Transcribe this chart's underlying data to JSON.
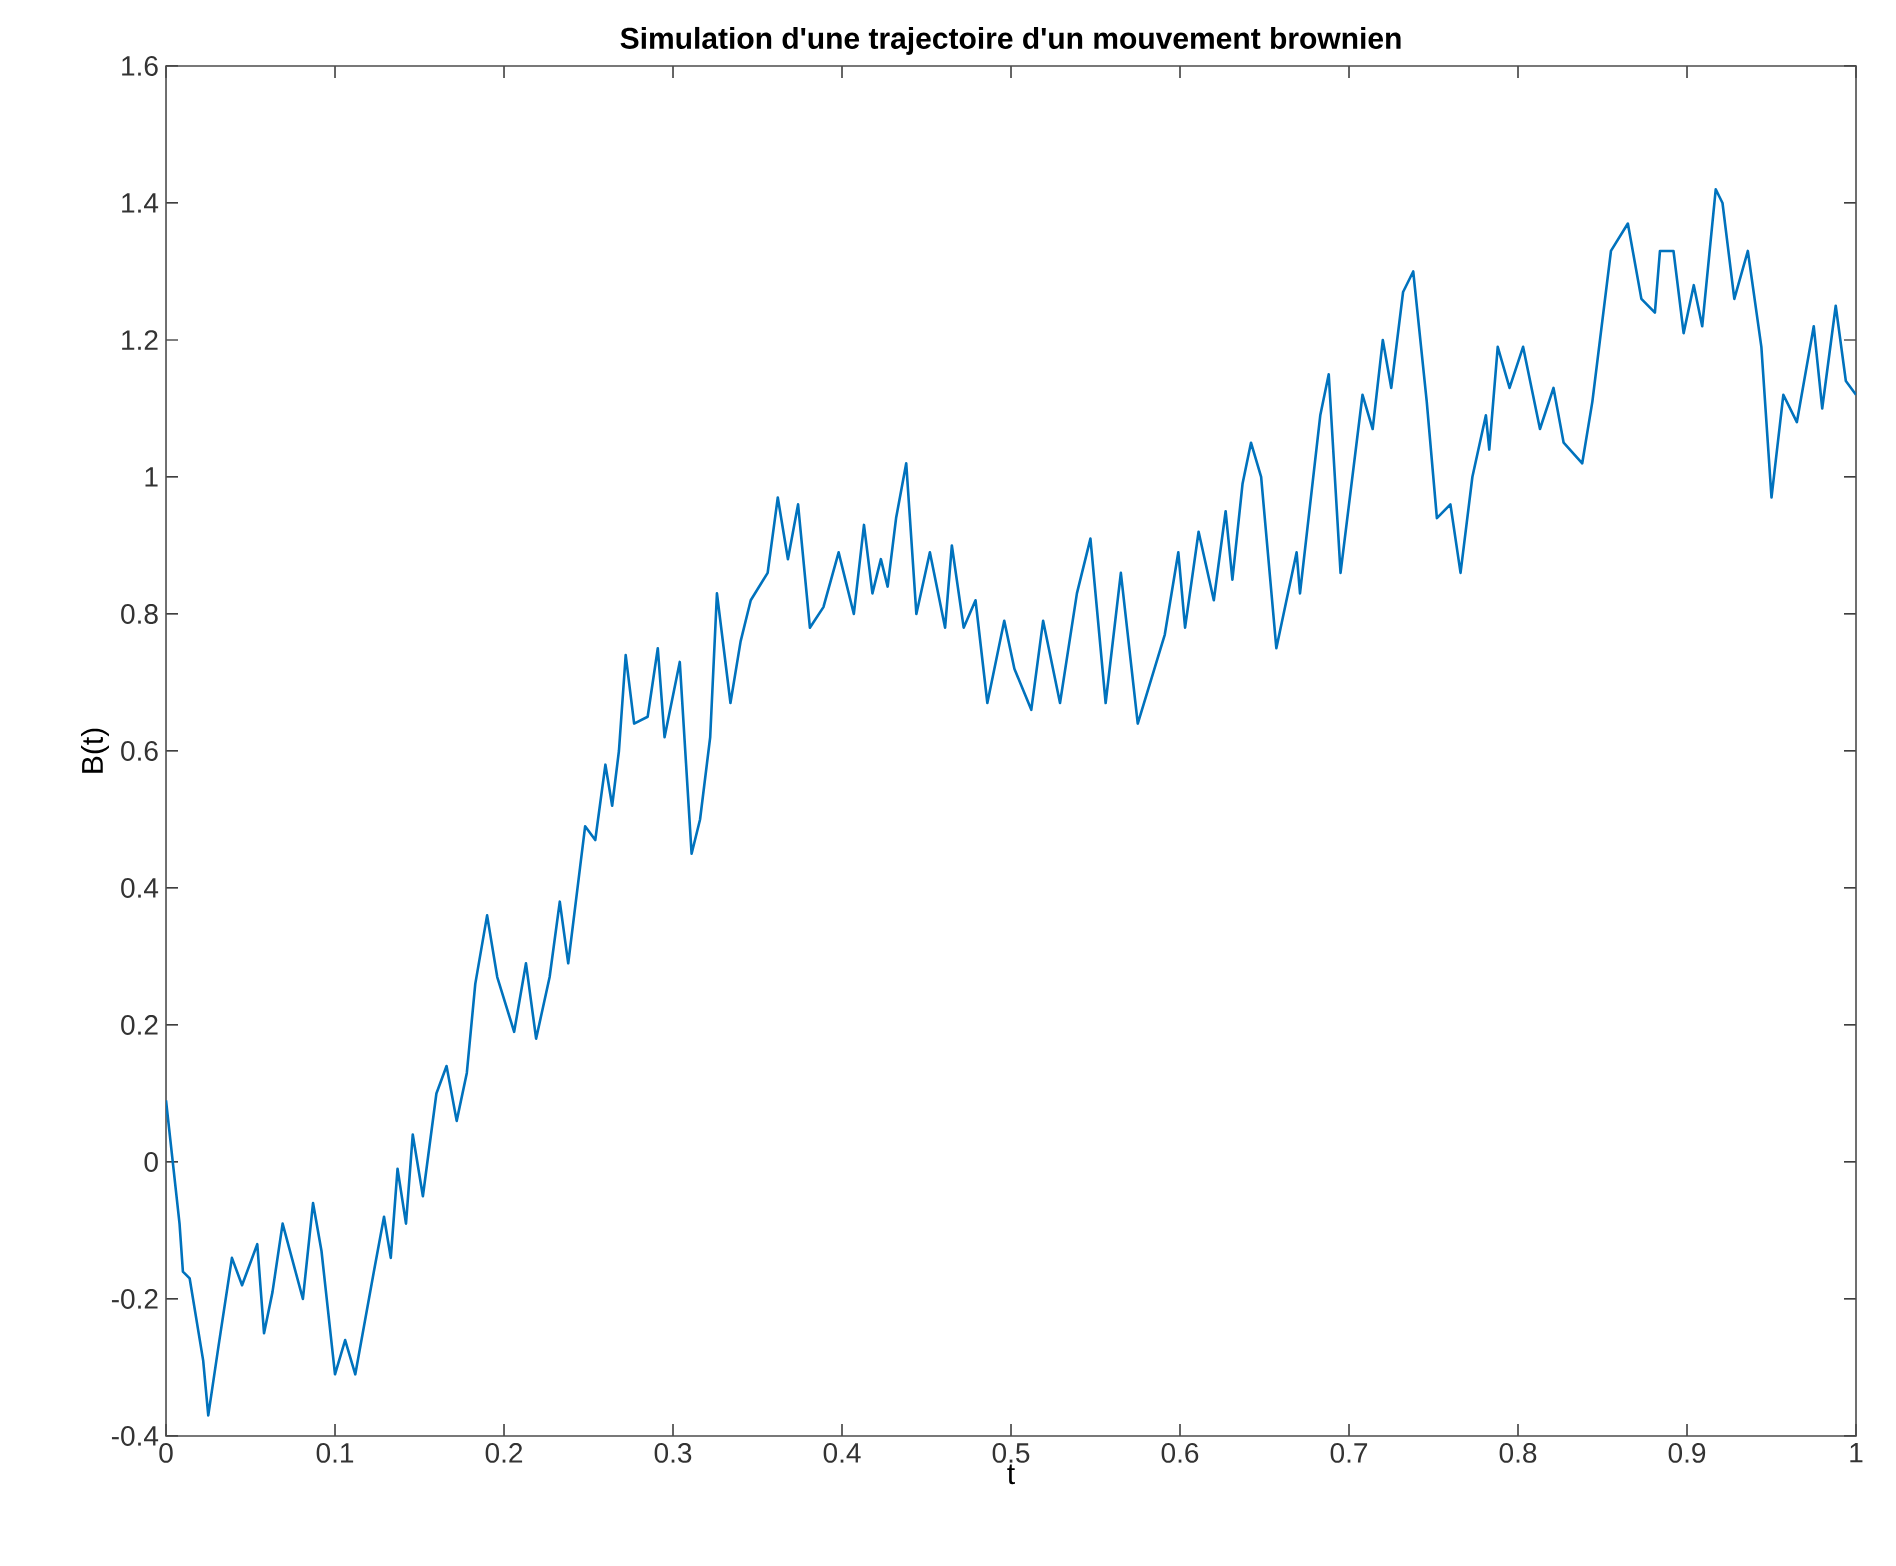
{
  "chart_data": {
    "type": "line",
    "title": "Simulation d'une trajectoire d'un mouvement brownien",
    "xlabel": "t",
    "ylabel": "B(t)",
    "xlim": [
      0,
      1
    ],
    "ylim": [
      -0.4,
      1.6
    ],
    "xticks": [
      0,
      0.1,
      0.2,
      0.3,
      0.4,
      0.5,
      0.6,
      0.7,
      0.8,
      0.9,
      1
    ],
    "yticks": [
      -0.4,
      -0.2,
      0,
      0.2,
      0.4,
      0.6,
      0.8,
      1,
      1.2,
      1.4,
      1.6
    ],
    "grid": false,
    "series": [
      {
        "color": "#0072bd",
        "x": [
          0,
          0.008,
          0.01,
          0.014,
          0.022,
          0.025,
          0.031,
          0.039,
          0.045,
          0.054,
          0.058,
          0.063,
          0.069,
          0.081,
          0.087,
          0.092,
          0.1,
          0.106,
          0.112,
          0.123,
          0.129,
          0.133,
          0.137,
          0.142,
          0.146,
          0.152,
          0.16,
          0.166,
          0.172,
          0.178,
          0.183,
          0.19,
          0.196,
          0.206,
          0.213,
          0.219,
          0.227,
          0.233,
          0.238,
          0.245,
          0.248,
          0.254,
          0.26,
          0.264,
          0.268,
          0.272,
          0.277,
          0.285,
          0.291,
          0.295,
          0.304,
          0.311,
          0.316,
          0.322,
          0.326,
          0.334,
          0.34,
          0.346,
          0.356,
          0.362,
          0.368,
          0.374,
          0.381,
          0.389,
          0.398,
          0.407,
          0.413,
          0.418,
          0.423,
          0.427,
          0.432,
          0.438,
          0.444,
          0.452,
          0.461,
          0.465,
          0.472,
          0.479,
          0.486,
          0.496,
          0.502,
          0.512,
          0.519,
          0.529,
          0.539,
          0.547,
          0.556,
          0.565,
          0.575,
          0.591,
          0.599,
          0.603,
          0.611,
          0.62,
          0.627,
          0.631,
          0.637,
          0.642,
          0.648,
          0.657,
          0.669,
          0.671,
          0.683,
          0.688,
          0.695,
          0.708,
          0.714,
          0.72,
          0.725,
          0.732,
          0.738,
          0.746,
          0.752,
          0.76,
          0.766,
          0.773,
          0.781,
          0.783,
          0.788,
          0.795,
          0.803,
          0.813,
          0.821,
          0.827,
          0.838,
          0.844,
          0.855,
          0.865,
          0.873,
          0.881,
          0.884,
          0.892,
          0.898,
          0.904,
          0.909,
          0.917,
          0.921,
          0.928,
          0.936,
          0.944,
          0.95,
          0.957,
          0.965,
          0.975,
          0.98,
          0.988,
          0.994,
          1
        ],
        "values": [
          0.09,
          -0.09,
          -0.16,
          -0.17,
          -0.29,
          -0.37,
          -0.27,
          -0.14,
          -0.18,
          -0.12,
          -0.25,
          -0.19,
          -0.09,
          -0.2,
          -0.06,
          -0.13,
          -0.31,
          -0.26,
          -0.31,
          -0.16,
          -0.08,
          -0.14,
          -0.01,
          -0.09,
          0.04,
          -0.05,
          0.1,
          0.14,
          0.06,
          0.13,
          0.26,
          0.36,
          0.27,
          0.19,
          0.29,
          0.18,
          0.27,
          0.38,
          0.29,
          0.43,
          0.49,
          0.47,
          0.58,
          0.52,
          0.6,
          0.74,
          0.64,
          0.65,
          0.75,
          0.62,
          0.73,
          0.45,
          0.5,
          0.62,
          0.83,
          0.67,
          0.76,
          0.82,
          0.86,
          0.97,
          0.88,
          0.96,
          0.78,
          0.81,
          0.89,
          0.8,
          0.93,
          0.83,
          0.88,
          0.84,
          0.94,
          1.02,
          0.8,
          0.89,
          0.78,
          0.9,
          0.78,
          0.82,
          0.67,
          0.79,
          0.72,
          0.66,
          0.79,
          0.67,
          0.83,
          0.91,
          0.67,
          0.86,
          0.64,
          0.77,
          0.89,
          0.78,
          0.92,
          0.82,
          0.95,
          0.85,
          0.99,
          1.05,
          1.0,
          0.75,
          0.89,
          0.83,
          1.09,
          1.15,
          0.86,
          1.12,
          1.07,
          1.2,
          1.13,
          1.27,
          1.3,
          1.11,
          0.94,
          0.96,
          0.86,
          1.0,
          1.09,
          1.04,
          1.19,
          1.13,
          1.19,
          1.07,
          1.13,
          1.05,
          1.02,
          1.11,
          1.33,
          1.37,
          1.26,
          1.24,
          1.33,
          1.33,
          1.21,
          1.28,
          1.22,
          1.42,
          1.4,
          1.26,
          1.33,
          1.19,
          0.97,
          1.12,
          1.08,
          1.22,
          1.1,
          1.25,
          1.14,
          1.12
        ]
      }
    ]
  }
}
